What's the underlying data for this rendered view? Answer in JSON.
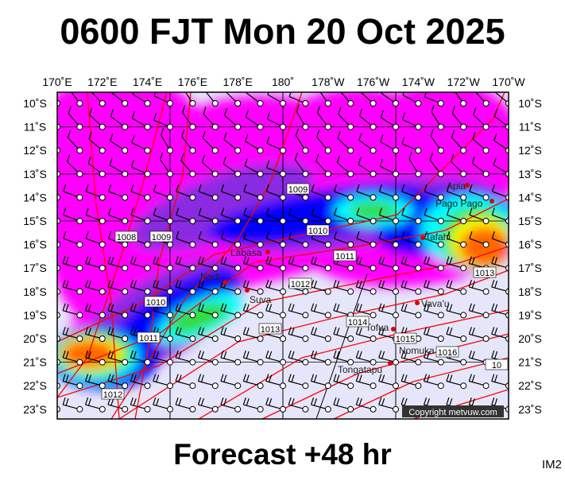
{
  "title": "0600 FJT Mon 20 Oct 2025",
  "footer": "Forecast +48 hr",
  "image_code": "IM2",
  "copyright": "Copyright metvuw.com",
  "lon_labels": [
    "170˚E",
    "172˚E",
    "174˚E",
    "176˚E",
    "178˚E",
    "180˚",
    "178˚W",
    "176˚W",
    "174˚W",
    "172˚W",
    "170˚W"
  ],
  "lat_labels": [
    "10˚S",
    "11˚S",
    "12˚S",
    "13˚S",
    "14˚S",
    "15˚S",
    "16˚S",
    "17˚S",
    "18˚S",
    "19˚S",
    "20˚S",
    "21˚S",
    "22˚S",
    "23˚S"
  ],
  "places": [
    {
      "name": "Apia"
    },
    {
      "name": "Pago Pago"
    },
    {
      "name": "Tafahi"
    },
    {
      "name": "Labasa"
    },
    {
      "name": "Nadi"
    },
    {
      "name": "Suva"
    },
    {
      "name": "Vava'u"
    },
    {
      "name": "Tofua"
    },
    {
      "name": "Nomuka"
    },
    {
      "name": "Tongatapu"
    }
  ],
  "isobar_labels": [
    "1008",
    "1009",
    "1009",
    "1010",
    "1010",
    "1011",
    "1011",
    "1012",
    "1012",
    "1013",
    "1013",
    "1014",
    "1015",
    "1016",
    "10"
  ],
  "colors": {
    "background": "#e6e6fa",
    "isobar": "#ff0000",
    "precip_light": "#ff00ff",
    "precip_med": "#8a2be2",
    "precip_heavy": "#0000ff",
    "cyan": "#00ffff",
    "green": "#33dd33",
    "yellow": "#ffff00",
    "orange": "#ff6600"
  }
}
